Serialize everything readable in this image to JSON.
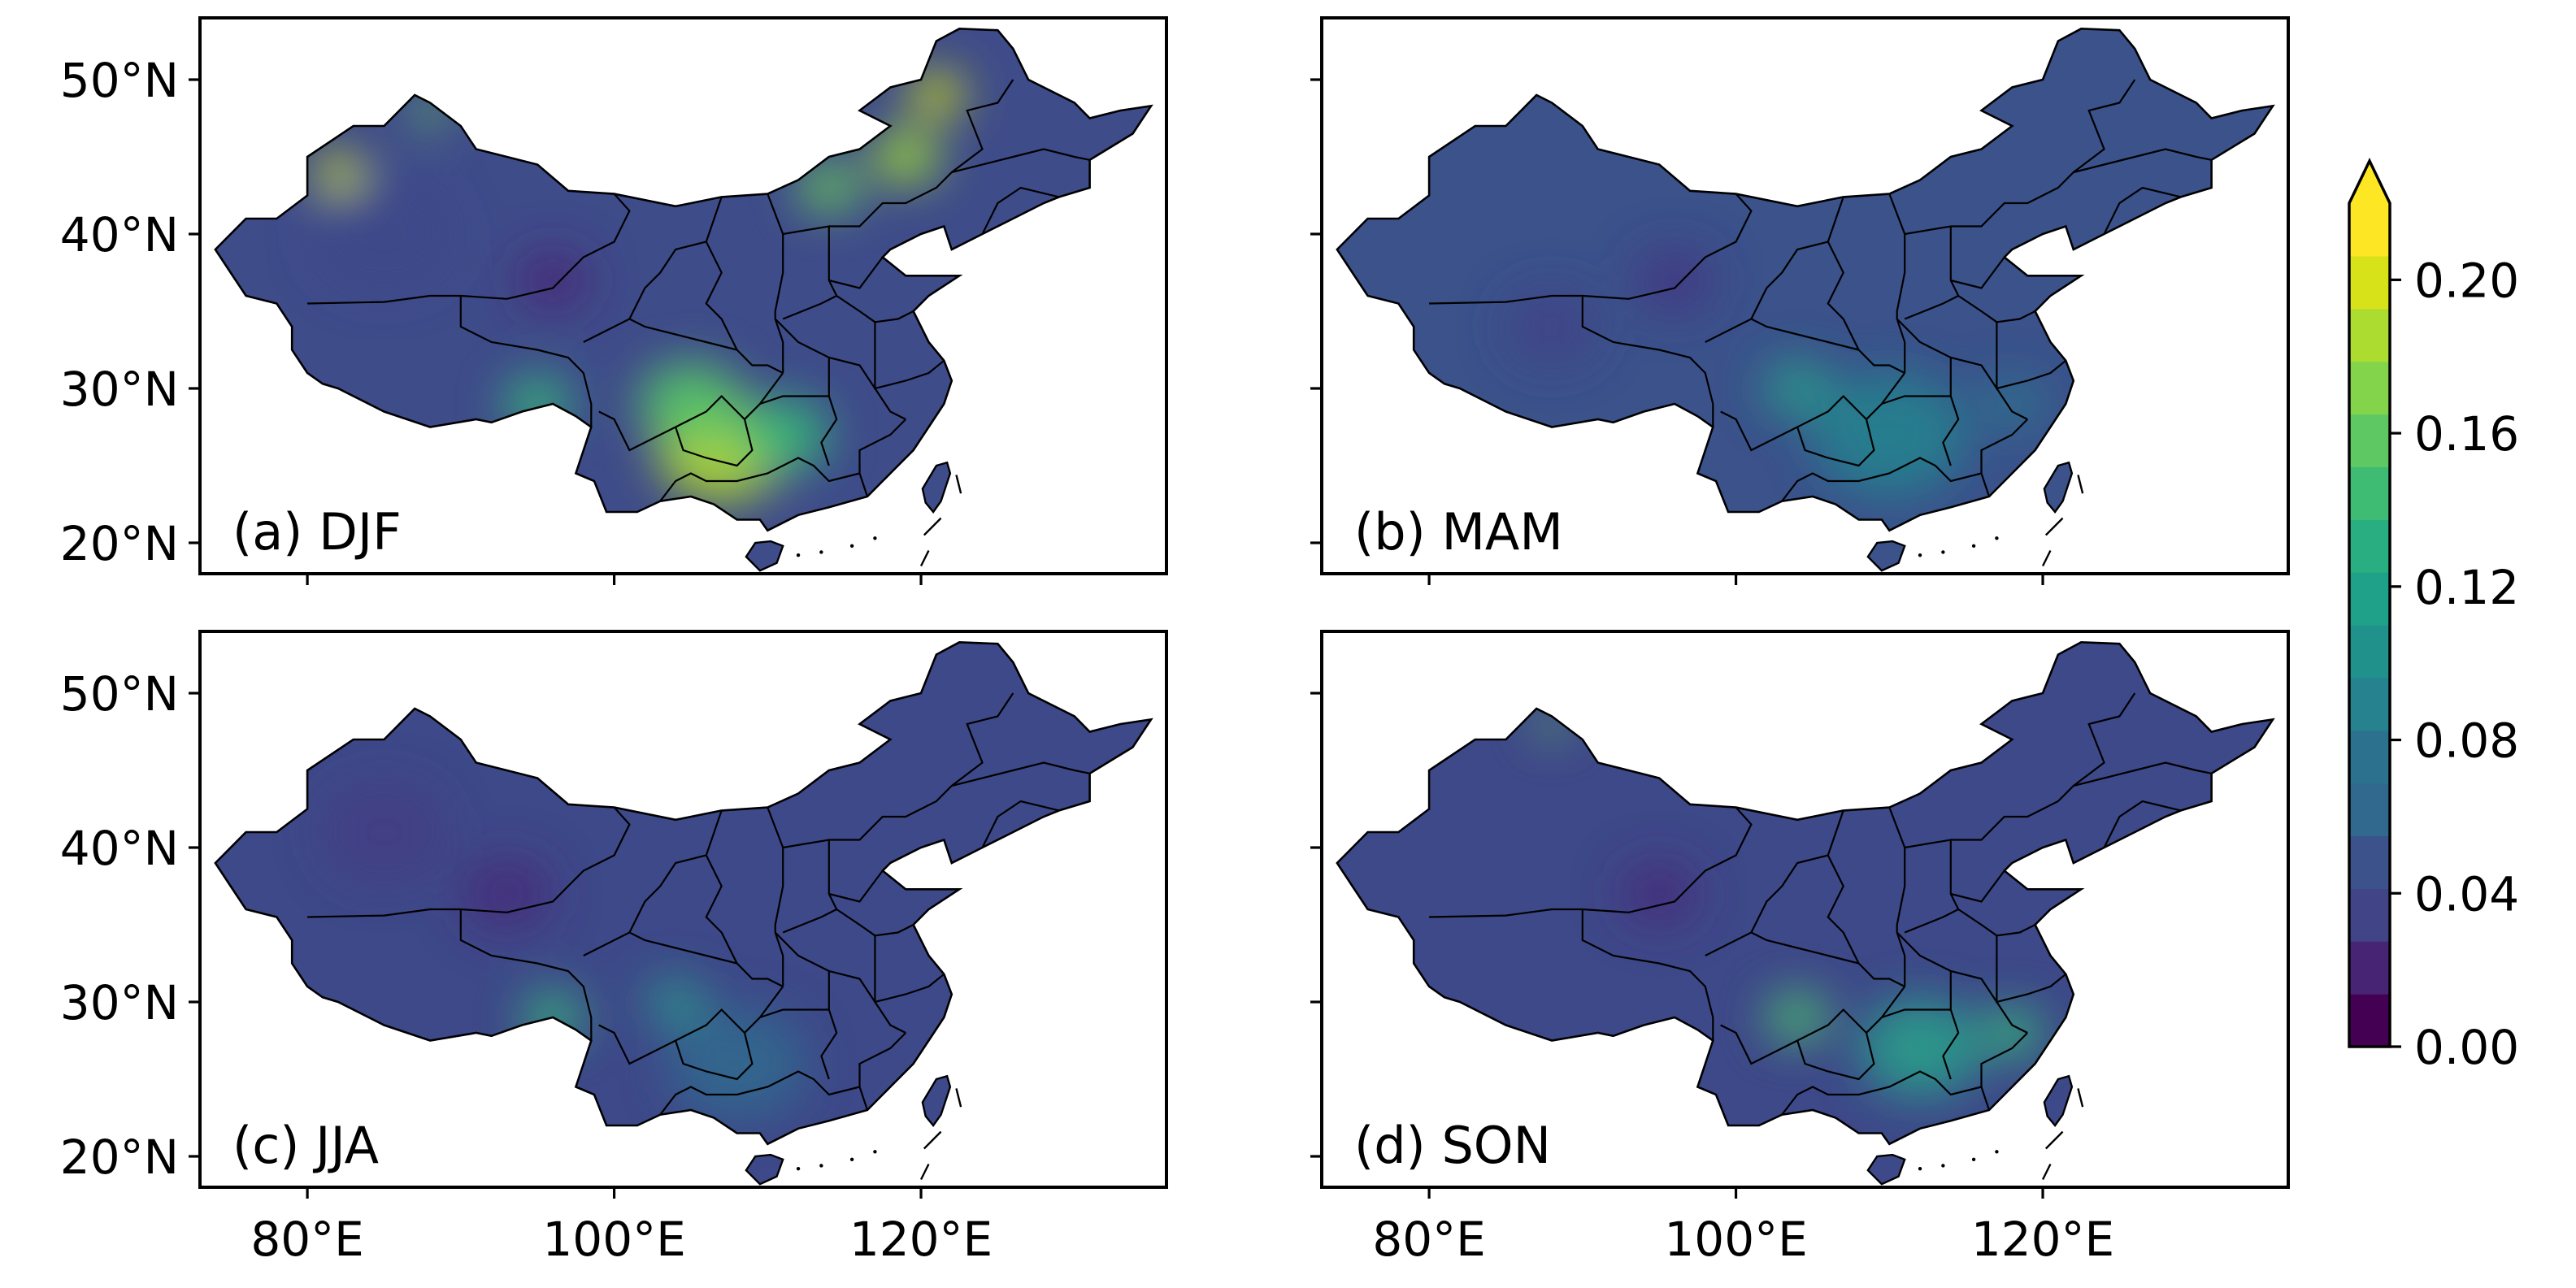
{
  "panels": [
    {
      "label": "(a) DJF",
      "base": "#3f4c8a",
      "blobs": [
        {
          "lon": 107,
          "lat": 26,
          "r": 4.2,
          "c": "#b2dd2e"
        },
        {
          "lon": 105,
          "lat": 29,
          "r": 3.4,
          "c": "#54c568"
        },
        {
          "lon": 111,
          "lat": 27,
          "r": 3.0,
          "c": "#35b779"
        },
        {
          "lon": 119,
          "lat": 45,
          "r": 2.2,
          "c": "#a0da39"
        },
        {
          "lon": 121,
          "lat": 49,
          "r": 1.8,
          "c": "#d0e11c"
        },
        {
          "lon": 114,
          "lat": 43,
          "r": 2.0,
          "c": "#6ccd5a"
        },
        {
          "lon": 82,
          "lat": 44,
          "r": 1.6,
          "c": "#d0e11c"
        },
        {
          "lon": 88,
          "lat": 48,
          "r": 1.2,
          "c": "#6ccd5a"
        },
        {
          "lon": 96,
          "lat": 37,
          "r": 2.4,
          "c": "#482878"
        },
        {
          "lon": 85,
          "lat": 40,
          "r": 4.5,
          "c": "#3e4989"
        },
        {
          "lon": 95,
          "lat": 29,
          "r": 2.2,
          "c": "#35b779"
        }
      ]
    },
    {
      "label": "(b) MAM",
      "base": "#3b528b",
      "blobs": [
        {
          "lon": 110,
          "lat": 27,
          "r": 5.0,
          "c": "#26828e"
        },
        {
          "lon": 104,
          "lat": 30,
          "r": 2.2,
          "c": "#2a9d8a"
        },
        {
          "lon": 96,
          "lat": 37,
          "r": 2.6,
          "c": "#443983"
        },
        {
          "lon": 88,
          "lat": 34,
          "r": 3.0,
          "c": "#414487"
        },
        {
          "lon": 118,
          "lat": 29,
          "r": 2.2,
          "c": "#2c728e"
        }
      ]
    },
    {
      "label": "(c) JJA",
      "base": "#3e4989",
      "blobs": [
        {
          "lon": 96,
          "lat": 29,
          "r": 2.0,
          "c": "#35b779"
        },
        {
          "lon": 108,
          "lat": 26,
          "r": 4.5,
          "c": "#31688e"
        },
        {
          "lon": 104,
          "lat": 30,
          "r": 1.8,
          "c": "#2a9d8a"
        },
        {
          "lon": 93,
          "lat": 37,
          "r": 3.0,
          "c": "#472d7b"
        },
        {
          "lon": 85,
          "lat": 41,
          "r": 4.0,
          "c": "#433e85"
        }
      ]
    },
    {
      "label": "(d) SON",
      "base": "#3e4989",
      "blobs": [
        {
          "lon": 104,
          "lat": 29,
          "r": 2.0,
          "c": "#4ac16d"
        },
        {
          "lon": 112,
          "lat": 27,
          "r": 4.0,
          "c": "#2a9d8a"
        },
        {
          "lon": 118,
          "lat": 28,
          "r": 2.0,
          "c": "#35b779"
        },
        {
          "lon": 95,
          "lat": 37,
          "r": 2.6,
          "c": "#472d7b"
        },
        {
          "lon": 88,
          "lat": 48,
          "r": 1.0,
          "c": "#6ccd5a"
        }
      ]
    }
  ],
  "lat_ticks": [
    {
      "value": 20,
      "label": "20°N"
    },
    {
      "value": 30,
      "label": "30°N"
    },
    {
      "value": 40,
      "label": "40°N"
    },
    {
      "value": 50,
      "label": "50°N"
    }
  ],
  "lon_ticks": [
    {
      "value": 80,
      "label": "80°E"
    },
    {
      "value": 100,
      "label": "100°E"
    },
    {
      "value": 120,
      "label": "120°E"
    }
  ],
  "map_extent": {
    "lon": [
      73,
      136
    ],
    "lat": [
      18,
      54
    ]
  },
  "colorbar": {
    "min": 0.0,
    "max": 0.22,
    "extend": "max",
    "ticks": [
      {
        "value": 0.0,
        "label": "0.00"
      },
      {
        "value": 0.04,
        "label": "0.04"
      },
      {
        "value": 0.08,
        "label": "0.08"
      },
      {
        "value": 0.12,
        "label": "0.12"
      },
      {
        "value": 0.16,
        "label": "0.16"
      },
      {
        "value": 0.2,
        "label": "0.20"
      }
    ],
    "colors": [
      "#440154",
      "#482475",
      "#414487",
      "#3b528b",
      "#31688e",
      "#2c728e",
      "#26828e",
      "#21918c",
      "#1fa088",
      "#28ae80",
      "#3fbc73",
      "#5ec962",
      "#84d44b",
      "#addc30",
      "#d8e219",
      "#fde725"
    ],
    "extend_color": "#fde725"
  },
  "china_outline": [
    [
      74,
      39
    ],
    [
      76,
      41
    ],
    [
      78,
      41
    ],
    [
      80,
      42.5
    ],
    [
      80,
      45
    ],
    [
      83,
      47
    ],
    [
      85,
      47
    ],
    [
      87,
      49
    ],
    [
      88,
      48.5
    ],
    [
      90,
      47
    ],
    [
      91,
      45.5
    ],
    [
      93,
      45
    ],
    [
      95,
      44.5
    ],
    [
      97,
      42.8
    ],
    [
      100,
      42.6
    ],
    [
      104,
      41.8
    ],
    [
      107,
      42.4
    ],
    [
      110,
      42.6
    ],
    [
      112,
      43.5
    ],
    [
      114,
      45
    ],
    [
      116,
      45.5
    ],
    [
      118,
      47
    ],
    [
      116,
      48
    ],
    [
      118,
      49.5
    ],
    [
      120,
      50
    ],
    [
      121,
      52.5
    ],
    [
      122.5,
      53.3
    ],
    [
      125,
      53.2
    ],
    [
      126,
      52
    ],
    [
      127,
      50
    ],
    [
      130,
      48.5
    ],
    [
      131,
      47.5
    ],
    [
      133,
      48
    ],
    [
      135,
      48.3
    ],
    [
      133.8,
      46.5
    ],
    [
      131,
      44.8
    ],
    [
      131,
      43
    ],
    [
      129,
      42.4
    ],
    [
      128,
      42
    ],
    [
      126,
      41
    ],
    [
      124,
      40
    ],
    [
      122,
      39
    ],
    [
      121.5,
      40.5
    ],
    [
      120,
      40
    ],
    [
      118,
      39
    ],
    [
      117.5,
      38.5
    ],
    [
      119,
      37.3
    ],
    [
      122.5,
      37.3
    ],
    [
      120.5,
      36
    ],
    [
      119.5,
      35
    ],
    [
      120.5,
      33
    ],
    [
      121.5,
      31.8
    ],
    [
      122,
      30.5
    ],
    [
      121.5,
      29
    ],
    [
      120.5,
      27.5
    ],
    [
      119.5,
      26
    ],
    [
      118,
      24.5
    ],
    [
      116.5,
      23
    ],
    [
      114,
      22.3
    ],
    [
      112,
      21.8
    ],
    [
      110,
      20.8
    ],
    [
      109.5,
      21.5
    ],
    [
      108,
      21.5
    ],
    [
      106.5,
      22.5
    ],
    [
      105,
      23
    ],
    [
      103,
      22.7
    ],
    [
      101.5,
      22
    ],
    [
      99.5,
      22
    ],
    [
      98.7,
      24
    ],
    [
      97.5,
      24.5
    ],
    [
      98.5,
      27.5
    ],
    [
      97.5,
      28.2
    ],
    [
      96,
      29
    ],
    [
      94,
      28.5
    ],
    [
      92,
      27.8
    ],
    [
      91,
      28
    ],
    [
      88,
      27.5
    ],
    [
      85,
      28.5
    ],
    [
      82,
      30
    ],
    [
      81,
      30.3
    ],
    [
      80,
      31
    ],
    [
      79,
      32.5
    ],
    [
      79,
      34
    ],
    [
      78,
      35.5
    ],
    [
      76,
      36
    ],
    [
      75,
      37.5
    ]
  ],
  "hainan": [
    [
      108.6,
      19.1
    ],
    [
      109.5,
      18.2
    ],
    [
      110.6,
      18.7
    ],
    [
      111,
      19.8
    ],
    [
      110.2,
      20.1
    ],
    [
      109.2,
      20
    ]
  ],
  "taiwan": [
    [
      120.8,
      22
    ],
    [
      121.3,
      22.7
    ],
    [
      121.9,
      24.5
    ],
    [
      121.7,
      25.2
    ],
    [
      121,
      25
    ],
    [
      120.1,
      23.5
    ],
    [
      120.3,
      22.6
    ]
  ],
  "province_lines": [
    [
      [
        80,
        35.5
      ],
      [
        85,
        35.6
      ],
      [
        88,
        36
      ],
      [
        90,
        36
      ],
      [
        93,
        35.8
      ],
      [
        96,
        36.5
      ],
      [
        98,
        38.5
      ],
      [
        100,
        39.5
      ],
      [
        101,
        41.5
      ],
      [
        100,
        42.6
      ]
    ],
    [
      [
        90,
        36
      ],
      [
        90,
        34
      ],
      [
        92,
        33
      ],
      [
        95,
        32.5
      ],
      [
        97,
        32
      ],
      [
        98,
        31
      ],
      [
        98.5,
        29
      ],
      [
        98.5,
        27.5
      ]
    ],
    [
      [
        98,
        33
      ],
      [
        101,
        34.5
      ],
      [
        102,
        34
      ],
      [
        104,
        33.5
      ],
      [
        106,
        33
      ],
      [
        108,
        32.5
      ],
      [
        109,
        31.5
      ],
      [
        110,
        31.5
      ],
      [
        111,
        31
      ]
    ],
    [
      [
        101,
        34.5
      ],
      [
        102,
        36.5
      ],
      [
        103,
        37.5
      ],
      [
        104,
        39
      ],
      [
        106,
        39.5
      ],
      [
        107,
        42.4
      ]
    ],
    [
      [
        106,
        39.5
      ],
      [
        107,
        37.5
      ],
      [
        106,
        35.5
      ],
      [
        107,
        34.5
      ],
      [
        108,
        32.5
      ]
    ],
    [
      [
        110,
        42.6
      ],
      [
        111,
        40
      ],
      [
        111,
        37.5
      ],
      [
        110.5,
        35
      ],
      [
        110.5,
        34.5
      ],
      [
        111,
        33
      ],
      [
        111,
        31
      ]
    ],
    [
      [
        111,
        40
      ],
      [
        114,
        40.5
      ],
      [
        114,
        37
      ],
      [
        114.5,
        36
      ],
      [
        113.5,
        35.5
      ],
      [
        111,
        34.5
      ]
    ],
    [
      [
        114,
        40.5
      ],
      [
        116,
        40.5
      ],
      [
        117.5,
        42
      ],
      [
        119,
        42
      ],
      [
        121,
        43
      ],
      [
        122,
        44
      ],
      [
        124,
        45.5
      ],
      [
        123,
        48
      ],
      [
        125,
        48.5
      ],
      [
        126,
        50
      ]
    ],
    [
      [
        114,
        37
      ],
      [
        116,
        36.5
      ],
      [
        117.5,
        38.5
      ]
    ],
    [
      [
        114.5,
        36
      ],
      [
        116,
        35
      ],
      [
        117,
        34.3
      ],
      [
        118.5,
        34.5
      ],
      [
        119.5,
        35
      ]
    ],
    [
      [
        110.5,
        34.5
      ],
      [
        112,
        33
      ],
      [
        114,
        32
      ],
      [
        116,
        31.5
      ],
      [
        117,
        30
      ],
      [
        118,
        28.5
      ],
      [
        119,
        28
      ]
    ],
    [
      [
        117,
        34.3
      ],
      [
        117,
        32.5
      ],
      [
        117,
        30
      ],
      [
        119,
        30.5
      ],
      [
        120.5,
        31
      ],
      [
        121.5,
        31.8
      ]
    ],
    [
      [
        119,
        28
      ],
      [
        118,
        27
      ],
      [
        116,
        26
      ],
      [
        116,
        24.5
      ],
      [
        116.5,
        23
      ]
    ],
    [
      [
        116,
        24.5
      ],
      [
        114,
        24
      ],
      [
        113,
        25
      ],
      [
        112,
        25.5
      ],
      [
        111,
        25
      ],
      [
        110,
        24.5
      ],
      [
        108,
        24
      ],
      [
        106,
        24
      ],
      [
        105,
        24.5
      ],
      [
        104,
        24
      ],
      [
        103,
        22.7
      ]
    ],
    [
      [
        111,
        31
      ],
      [
        109.5,
        29
      ],
      [
        108.5,
        28
      ],
      [
        109,
        26
      ],
      [
        108,
        25
      ],
      [
        106,
        25.5
      ],
      [
        104.5,
        26
      ],
      [
        104,
        27.5
      ],
      [
        106,
        28.5
      ],
      [
        107,
        29.5
      ],
      [
        108.5,
        28
      ]
    ],
    [
      [
        104,
        27.5
      ],
      [
        102,
        26.5
      ],
      [
        101,
        26
      ],
      [
        100,
        28
      ],
      [
        99,
        28.5
      ]
    ],
    [
      [
        114,
        32
      ],
      [
        114,
        29.5
      ],
      [
        114.5,
        28
      ],
      [
        113.5,
        26.5
      ],
      [
        114,
        25
      ]
    ],
    [
      [
        109.5,
        29
      ],
      [
        111,
        29.5
      ],
      [
        114,
        29.5
      ]
    ],
    [
      [
        124,
        40
      ],
      [
        125,
        42
      ],
      [
        126.5,
        43
      ],
      [
        129,
        42.4
      ]
    ],
    [
      [
        122,
        44
      ],
      [
        126,
        45
      ],
      [
        128,
        45.5
      ],
      [
        130,
        45
      ],
      [
        131,
        44.8
      ]
    ]
  ]
}
